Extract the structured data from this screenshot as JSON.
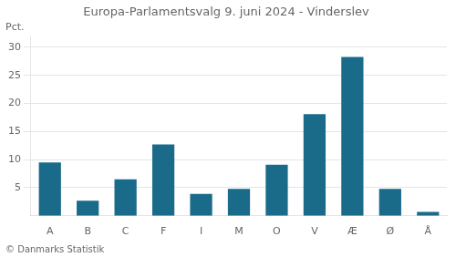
{
  "chart_data": {
    "type": "bar",
    "title": "Europa-Parlamentsvalg 9. juni 2024 - Vinderslev",
    "categories": [
      "A",
      "B",
      "C",
      "F",
      "I",
      "M",
      "O",
      "V",
      "Æ",
      "Ø",
      "Å"
    ],
    "values": [
      9.5,
      2.7,
      6.5,
      12.7,
      3.9,
      4.8,
      9.1,
      18.1,
      28.3,
      4.8,
      0.7
    ],
    "color": "#1a6b8a",
    "ylabel": "Pct.",
    "footer": "© Danmarks Statistik",
    "ylim": [
      0,
      32
    ],
    "yticks": [
      5,
      10,
      15,
      20,
      25,
      30
    ],
    "grid": true
  }
}
